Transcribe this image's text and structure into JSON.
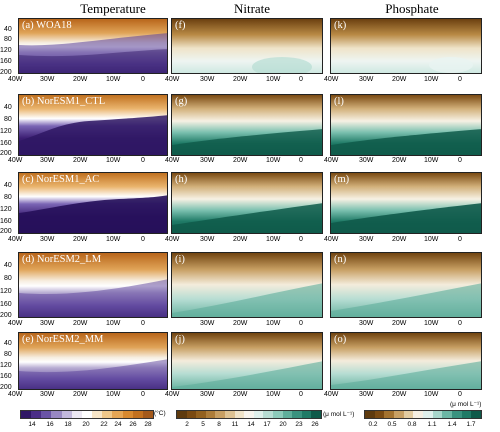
{
  "columns": [
    "Temperature",
    "Nitrate",
    "Phosphate"
  ],
  "panels": {
    "temperature": [
      {
        "label": "(a) WOA18"
      },
      {
        "label": "(b) NorESM1_CTL"
      },
      {
        "label": "(c) NorESM1_AC"
      },
      {
        "label": "(d) NorESM2_LM"
      },
      {
        "label": "(e) NorESM2_MM"
      }
    ],
    "nitrate": [
      {
        "label": "(f)"
      },
      {
        "label": "(g)"
      },
      {
        "label": "(h)"
      },
      {
        "label": "(i)"
      },
      {
        "label": "(j)"
      }
    ],
    "phosphate": [
      {
        "label": "(k)"
      },
      {
        "label": "(l)"
      },
      {
        "label": "(m)"
      },
      {
        "label": "(n)"
      },
      {
        "label": "(o)"
      }
    ]
  },
  "y_ticks": [
    "40",
    "80",
    "120",
    "160",
    "200"
  ],
  "x_ticks_left": [
    "40W",
    "30W",
    "20W",
    "10W",
    "0"
  ],
  "x_ticks_right": [
    "40W",
    "30W",
    "20W",
    "10W",
    "0"
  ],
  "colorbars": {
    "temperature": {
      "ticks": [
        "14",
        "16",
        "18",
        "20",
        "22",
        "24",
        "26",
        "28"
      ],
      "unit": "(°C)"
    },
    "nitrate": {
      "ticks": [
        "2",
        "5",
        "8",
        "11",
        "14",
        "17",
        "20",
        "23",
        "26"
      ],
      "unit": "(μ mol L⁻¹)"
    },
    "phosphate": {
      "ticks": [
        "0.2",
        "0.5",
        "0.8",
        "1.1",
        "1.4",
        "1.7"
      ],
      "unit": "(μ mol L⁻¹)"
    }
  },
  "colors": {
    "temp_warm": "#c2701e",
    "temp_mid": "#f4ead8",
    "temp_cool": "#3b1d72",
    "nut_low": "#6b4010",
    "nut_mid": "#f5f3ee",
    "nut_high": "#0f5a4a"
  }
}
